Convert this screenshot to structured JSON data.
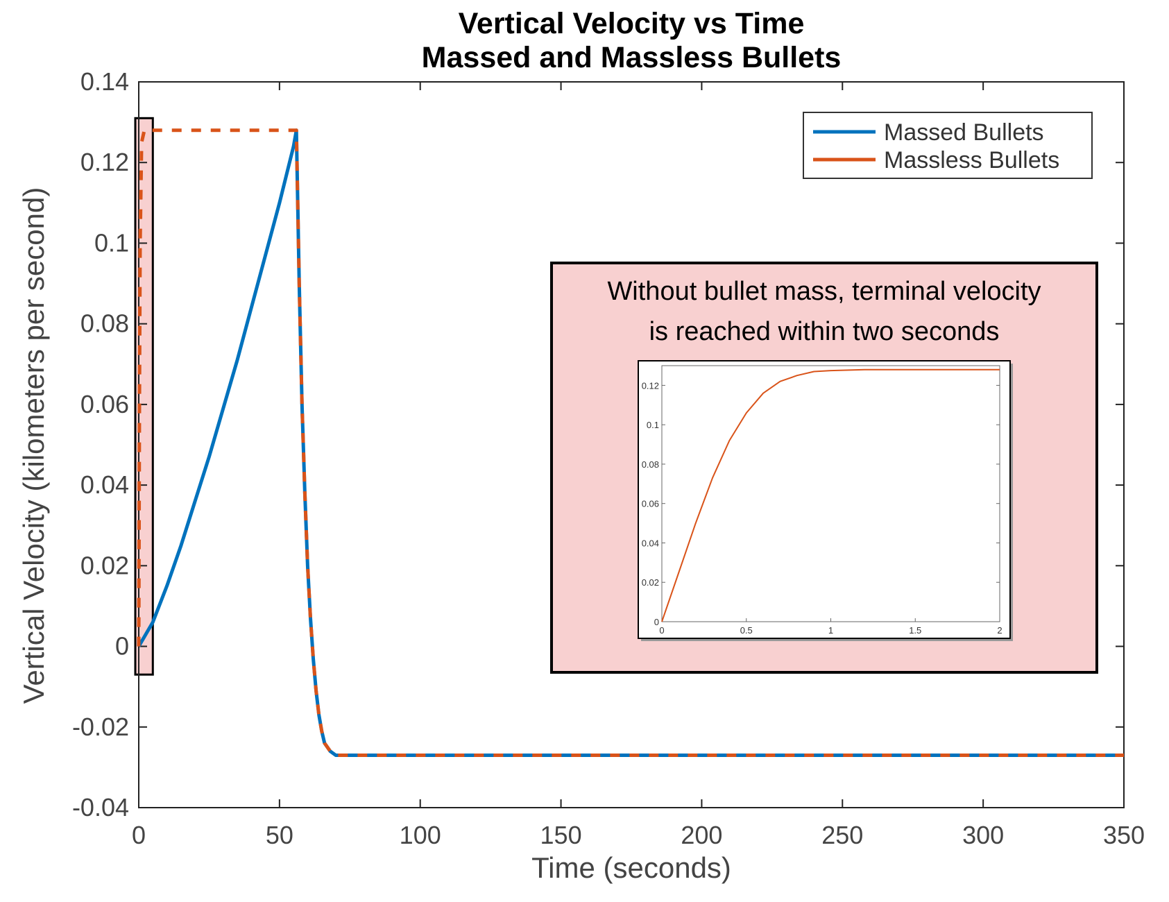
{
  "chart_data": {
    "type": "line",
    "title": [
      "Vertical Velocity vs Time",
      "Massed and Massless Bullets"
    ],
    "xlabel": "Time (seconds)",
    "ylabel": "Vertical Velocity (kilometers per second)",
    "xlim": [
      0,
      350
    ],
    "ylim": [
      -0.04,
      0.14
    ],
    "xticks": [
      "0",
      "50",
      "100",
      "150",
      "200",
      "250",
      "300",
      "350"
    ],
    "yticks": [
      "-0.04",
      "-0.02",
      "0",
      "0.02",
      "0.04",
      "0.06",
      "0.08",
      "0.1",
      "0.12",
      "0.14"
    ],
    "grid": false,
    "legend_position": "top-right",
    "series": [
      {
        "name": "Massed Bullets",
        "color": "#0072BD",
        "style": "solid",
        "x": [
          0,
          5,
          10,
          15,
          20,
          25,
          30,
          35,
          40,
          45,
          50,
          55,
          56,
          57,
          58,
          59,
          60,
          61,
          62,
          63,
          64,
          65,
          66,
          68,
          70,
          80,
          100,
          150,
          200,
          250,
          300,
          350
        ],
        "y": [
          0,
          0.006,
          0.015,
          0.025,
          0.036,
          0.047,
          0.059,
          0.071,
          0.084,
          0.097,
          0.11,
          0.124,
          0.128,
          0.09,
          0.06,
          0.038,
          0.02,
          0.007,
          -0.003,
          -0.011,
          -0.017,
          -0.021,
          -0.024,
          -0.026,
          -0.027,
          -0.027,
          -0.027,
          -0.027,
          -0.027,
          -0.027,
          -0.027,
          -0.027
        ]
      },
      {
        "name": "Massless Bullets",
        "color": "#D95319",
        "style": "dashed",
        "x": [
          0,
          0.25,
          0.5,
          1,
          2,
          56,
          57,
          58,
          59,
          60,
          61,
          62,
          63,
          64,
          65,
          66,
          68,
          70,
          80,
          100,
          150,
          200,
          250,
          300,
          350
        ],
        "y": [
          0,
          0.06,
          0.1,
          0.125,
          0.128,
          0.128,
          0.09,
          0.06,
          0.038,
          0.02,
          0.007,
          -0.003,
          -0.011,
          -0.017,
          -0.021,
          -0.024,
          -0.026,
          -0.027,
          -0.027,
          -0.027,
          -0.027,
          -0.027,
          -0.027,
          -0.027,
          -0.027
        ]
      }
    ],
    "highlight_region": {
      "x": [
        0,
        5
      ],
      "y": [
        -0.007,
        0.131
      ],
      "fill": "#f8d0d0"
    },
    "annotation": {
      "text": [
        "Without bullet mass, terminal velocity",
        "is reached within two seconds"
      ],
      "fill": "#f8d0d0"
    },
    "inset": {
      "type": "line",
      "xlim": [
        0,
        2
      ],
      "ylim": [
        0,
        0.13
      ],
      "xticks": [
        "0",
        "0.5",
        "1",
        "1.5",
        "2"
      ],
      "yticks": [
        "0",
        "0.02",
        "0.04",
        "0.06",
        "0.08",
        "0.1",
        "0.12"
      ],
      "series": [
        {
          "name": "Massless Bullets",
          "color": "#D95319",
          "x": [
            0,
            0.1,
            0.2,
            0.3,
            0.4,
            0.5,
            0.6,
            0.7,
            0.8,
            0.9,
            1.0,
            1.2,
            1.4,
            1.6,
            1.8,
            2.0
          ],
          "y": [
            0,
            0.025,
            0.05,
            0.073,
            0.092,
            0.106,
            0.116,
            0.122,
            0.125,
            0.127,
            0.1275,
            0.128,
            0.128,
            0.128,
            0.128,
            0.128
          ]
        }
      ]
    }
  }
}
